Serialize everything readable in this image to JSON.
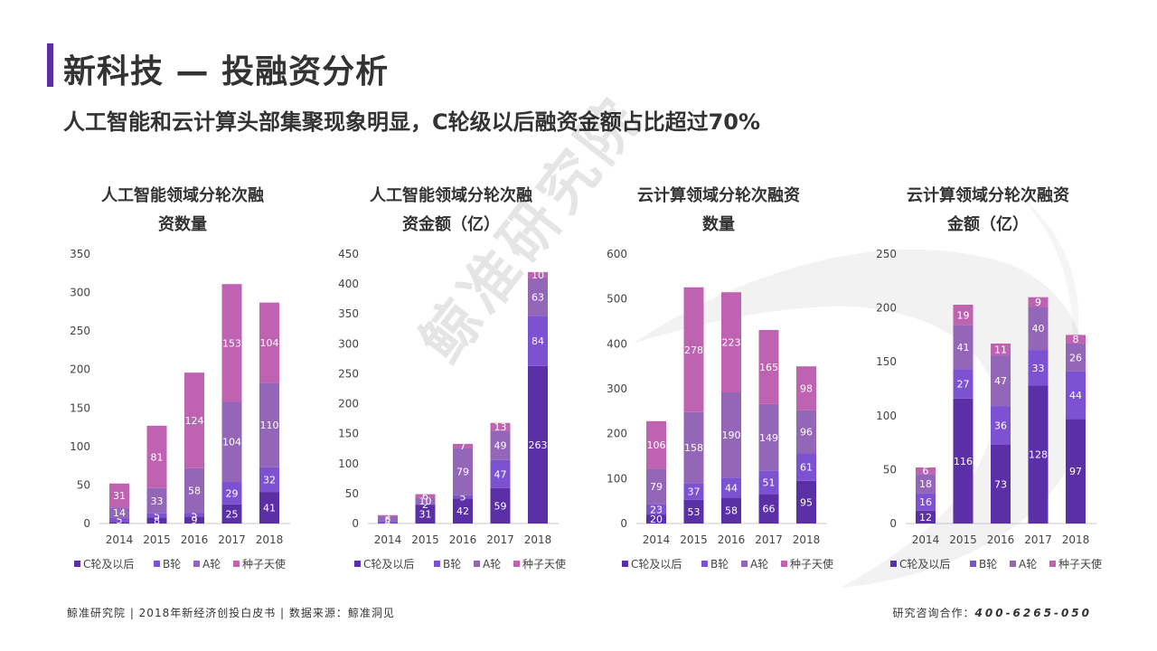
{
  "header": {
    "title": "新科技 — 投融资分析",
    "subtitle": "人工智能和云计算头部集聚现象明显，C轮级以后融资金额占比超过70%"
  },
  "watermark": "鲸准研究院",
  "colors": {
    "accent": "#5b2fa6",
    "c_round": "#5b2fa6",
    "b_round": "#7d52d2",
    "a_round": "#9466b8",
    "seed": "#bf62b2"
  },
  "legend_labels": [
    "C轮及以后",
    "B轮",
    "A轮",
    "种子天使"
  ],
  "chart_data": [
    {
      "type": "bar",
      "stacked": true,
      "title_lines": [
        "人工智能领域分轮次融",
        "资数量"
      ],
      "categories": [
        "2014",
        "2015",
        "2016",
        "2017",
        "2018"
      ],
      "ylim": [
        0,
        350
      ],
      "yticks": [
        0,
        50,
        100,
        150,
        200,
        250,
        300,
        350
      ],
      "series": [
        {
          "name": "C轮及以后",
          "values": [
            2,
            8,
            9,
            25,
            41
          ]
        },
        {
          "name": "B轮",
          "values": [
            5,
            5,
            5,
            29,
            32
          ]
        },
        {
          "name": "A轮",
          "values": [
            14,
            33,
            58,
            104,
            110
          ]
        },
        {
          "name": "种子天使",
          "values": [
            31,
            81,
            124,
            153,
            104
          ]
        }
      ],
      "label_series": [
        1,
        1,
        1,
        1
      ],
      "label_hide": [
        [
          0,
          0
        ]
      ]
    },
    {
      "type": "bar",
      "stacked": true,
      "title_lines": [
        "人工智能领域分轮次融",
        "资金额（亿）"
      ],
      "categories": [
        "2014",
        "2015",
        "2016",
        "2017",
        "2018"
      ],
      "ylim": [
        0,
        450
      ],
      "yticks": [
        0,
        50,
        100,
        150,
        200,
        250,
        300,
        350,
        400,
        450
      ],
      "series": [
        {
          "name": "C轮及以后",
          "values": [
            0,
            31,
            42,
            59,
            263
          ]
        },
        {
          "name": "B轮",
          "values": [
            4,
            2,
            5,
            47,
            84
          ]
        },
        {
          "name": "A轮",
          "values": [
            8,
            10,
            79,
            49,
            63
          ]
        },
        {
          "name": "种子天使",
          "values": [
            2,
            6,
            7,
            13,
            10
          ]
        }
      ],
      "label_series": [
        1,
        1,
        1,
        1
      ],
      "label_hide": [
        [
          0,
          0
        ]
      ]
    },
    {
      "type": "bar",
      "stacked": true,
      "title_lines": [
        "云计算领域分轮次融资",
        "数量"
      ],
      "categories": [
        "2014",
        "2015",
        "2016",
        "2017",
        "2018"
      ],
      "ylim": [
        0,
        600
      ],
      "yticks": [
        0,
        100,
        200,
        300,
        400,
        500,
        600
      ],
      "series": [
        {
          "name": "C轮及以后",
          "values": [
            20,
            53,
            58,
            66,
            95
          ]
        },
        {
          "name": "B轮",
          "values": [
            23,
            37,
            44,
            51,
            61
          ]
        },
        {
          "name": "A轮",
          "values": [
            79,
            158,
            190,
            149,
            96
          ]
        },
        {
          "name": "种子天使",
          "values": [
            106,
            278,
            223,
            165,
            98
          ]
        }
      ],
      "label_series": [
        1,
        1,
        1,
        1
      ],
      "label_hide": []
    },
    {
      "type": "bar",
      "stacked": true,
      "title_lines": [
        "云计算领域分轮次融资",
        "金额（亿）"
      ],
      "categories": [
        "2014",
        "2015",
        "2016",
        "2017",
        "2018"
      ],
      "ylim": [
        0,
        250
      ],
      "yticks": [
        0,
        50,
        100,
        150,
        200,
        250
      ],
      "series": [
        {
          "name": "C轮及以后",
          "values": [
            12,
            116,
            73,
            128,
            97
          ]
        },
        {
          "name": "B轮",
          "values": [
            16,
            27,
            36,
            33,
            44
          ]
        },
        {
          "name": "A轮",
          "values": [
            18,
            41,
            47,
            40,
            26
          ]
        },
        {
          "name": "种子天使",
          "values": [
            6,
            19,
            11,
            9,
            8
          ]
        }
      ],
      "label_series": [
        1,
        1,
        1,
        1
      ],
      "label_hide": []
    }
  ],
  "footer": {
    "left": "鲸准研究院 | 2018年新经济创投白皮书 | 数据来源：鲸准洞见",
    "right_label": "研究咨询合作：",
    "right_phone": "400-6265-050"
  }
}
